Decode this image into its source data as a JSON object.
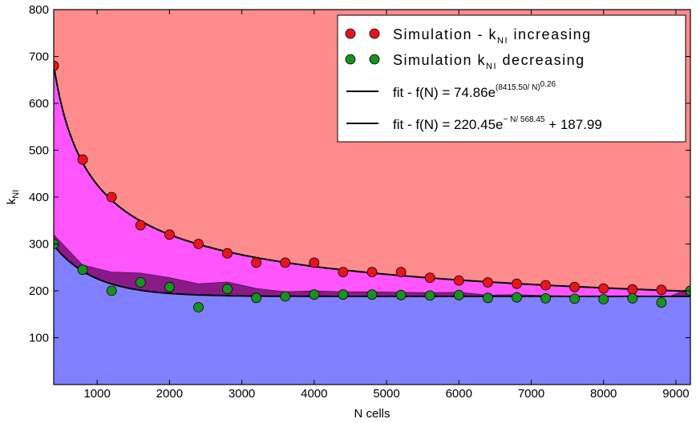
{
  "chart_data": {
    "type": "scatter",
    "xlabel": "N cells",
    "ylabel_main": "k",
    "ylabel_sub": "NI",
    "xlim": [
      400,
      9200
    ],
    "ylim": [
      0,
      800
    ],
    "xticks": [
      1000,
      2000,
      3000,
      4000,
      5000,
      6000,
      7000,
      8000,
      9000
    ],
    "yticks": [
      100,
      200,
      300,
      400,
      500,
      600,
      700,
      800
    ],
    "xtick_labels": [
      "1000",
      "2000",
      "3000",
      "4000",
      "5000",
      "6000",
      "7000",
      "8000",
      "9000"
    ],
    "ytick_labels": [
      "100",
      "200",
      "300",
      "400",
      "500",
      "600",
      "700",
      "800"
    ],
    "background_color": "#ff8c8c",
    "grid": false,
    "legend_position": "top-right",
    "series": [
      {
        "name": "Simulation - k_NI increasing",
        "color": "#e8141b",
        "x": [
          400,
          800,
          1200,
          1600,
          2000,
          2400,
          2800,
          3200,
          3600,
          4000,
          4400,
          4800,
          5200,
          5600,
          6000,
          6400,
          6800,
          7200,
          7600,
          8000,
          8400,
          8800,
          9200
        ],
        "y": [
          680,
          480,
          400,
          340,
          320,
          300,
          280,
          260,
          260,
          260,
          240,
          240,
          240,
          228,
          222,
          218,
          215,
          212,
          208,
          205,
          203,
          202,
          200
        ]
      },
      {
        "name": "Simulation k_NI decreasing",
        "color": "#17921f",
        "x": [
          400,
          800,
          1200,
          1600,
          2000,
          2400,
          2800,
          3200,
          3600,
          4000,
          4400,
          4800,
          5200,
          5600,
          6000,
          6400,
          6800,
          7200,
          7600,
          8000,
          8400,
          8800,
          9200
        ],
        "y": [
          300,
          245,
          200,
          218,
          208,
          165,
          204,
          185,
          188,
          192,
          192,
          192,
          191,
          190,
          191,
          185,
          186,
          184,
          183,
          182,
          184,
          175,
          200
        ]
      }
    ],
    "fits": [
      {
        "name": "fit - f(N) = 74.86e^((8415.50/N)^0.26)",
        "a": 74.86,
        "b": 8415.5,
        "p": 0.26
      },
      {
        "name": "fit - f(N) = 220.45e^(-N/568.45) + 187.99",
        "a": 220.45,
        "b": 568.45,
        "c": 187.99
      }
    ],
    "bands": {
      "upper_fill": "#ff55ff",
      "lower_fill": "#8080ff",
      "band_fill": "#8b1a89",
      "band_offset": [
        20,
        10,
        40,
        20,
        20,
        50,
        15,
        20,
        10,
        8,
        6,
        6,
        6,
        6,
        6,
        6,
        6,
        6,
        6,
        6,
        6,
        6,
        6
      ]
    },
    "legend": {
      "entry1_prefix": "Simulation - k",
      "entry1_sub": "NI",
      "entry1_suffix": " increasing",
      "entry2_prefix": "Simulation k",
      "entry2_sub": "NI",
      "entry2_suffix": " decreasing",
      "entry3_prefix": "fit - f(N) = 74.86e",
      "entry3_sup": "(8415.50/ N)",
      "entry3_supsup": "0.26",
      "entry4_prefix": "fit - f(N) = 220.45e",
      "entry4_sup": "− N/ 568.45",
      "entry4_suffix": " + 187.99"
    }
  }
}
